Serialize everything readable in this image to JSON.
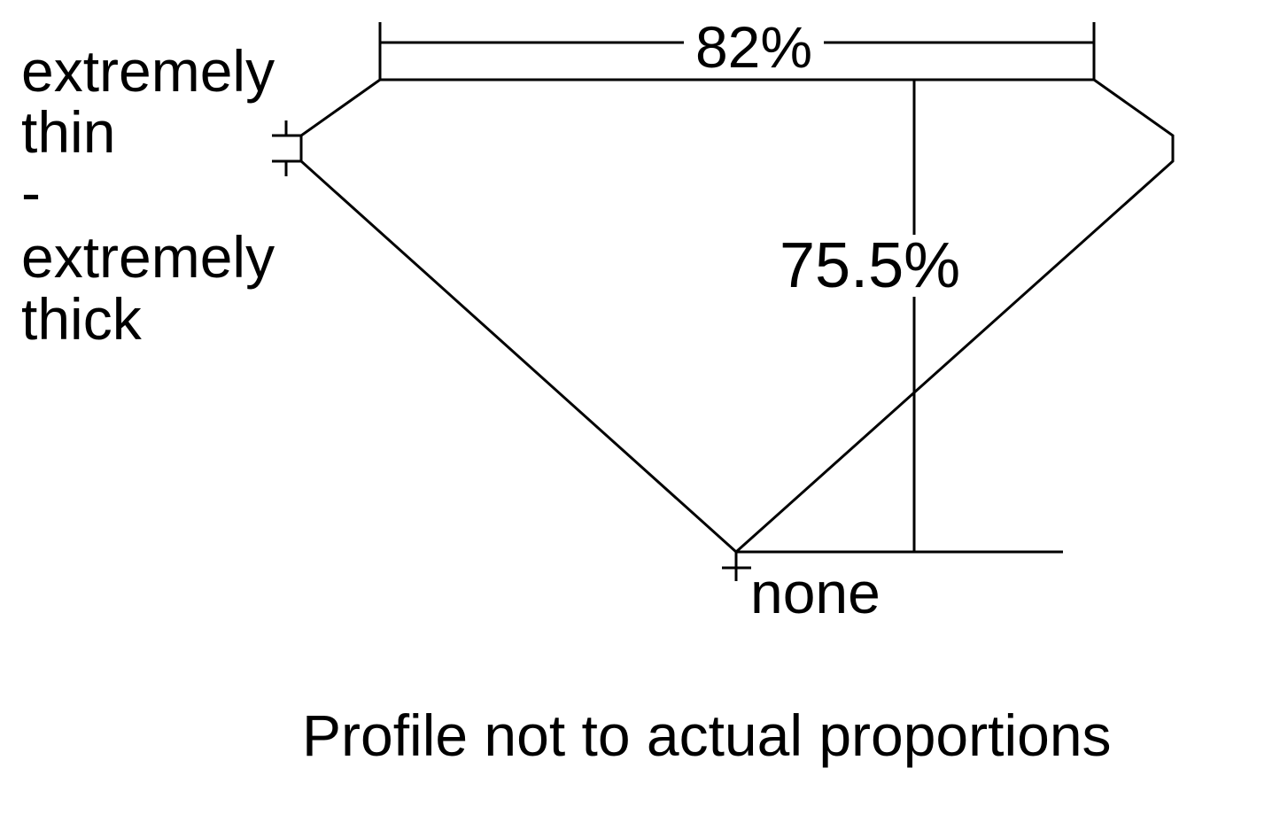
{
  "diagram": {
    "table_width_label": "82%",
    "total_depth_label": "75.5%",
    "girdle_label_lines": [
      "extremely",
      "thin",
      "-",
      "extremely",
      "thick"
    ],
    "culet_label": "none",
    "footnote": "Profile not to actual proportions",
    "line_color": "#000000",
    "background": "#ffffff"
  }
}
